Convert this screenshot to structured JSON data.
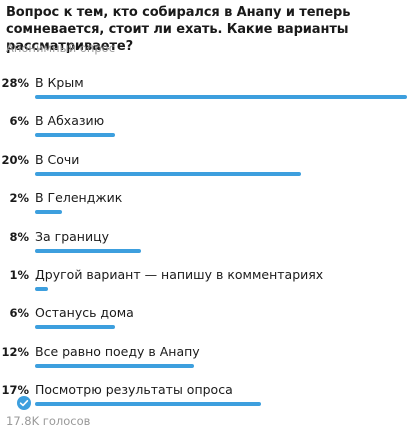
{
  "poll": {
    "question": "Вопрос к тем, кто собирался в Анапу и теперь сомневается, стоит ли ехать. Какие варианты рассматриваете?",
    "type_label": "Анонимный опрос",
    "votes_label": "17.8K голосов",
    "accent_color": "#3d9fde",
    "options": [
      {
        "percent_label": "28%",
        "percent": 28,
        "label": "В Крым",
        "selected": false
      },
      {
        "percent_label": "6%",
        "percent": 6,
        "label": "В Абхазию",
        "selected": false
      },
      {
        "percent_label": "20%",
        "percent": 20,
        "label": "В Сочи",
        "selected": false
      },
      {
        "percent_label": "2%",
        "percent": 2,
        "label": "В Геленджик",
        "selected": false
      },
      {
        "percent_label": "8%",
        "percent": 8,
        "label": "За границу",
        "selected": false
      },
      {
        "percent_label": "1%",
        "percent": 1,
        "label": "Другой вариант — напишу в комментариях",
        "selected": false
      },
      {
        "percent_label": "6%",
        "percent": 6,
        "label": "Останусь дома",
        "selected": false
      },
      {
        "percent_label": "12%",
        "percent": 12,
        "label": "Все равно поеду в Анапу",
        "selected": false
      },
      {
        "percent_label": "17%",
        "percent": 17,
        "label": "Посмотрю результаты опроса",
        "selected": true,
        "check_icon": "check-circle-icon"
      }
    ]
  }
}
